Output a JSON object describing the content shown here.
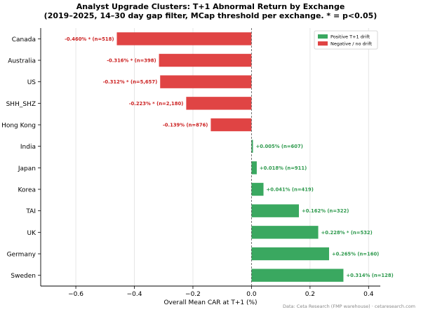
{
  "chart_data": {
    "type": "bar",
    "orientation": "horizontal",
    "title": "Analyst Upgrade Clusters: T+1 Abnormal Return by Exchange",
    "subtitle": "(2019–2025, 14–30 day gap filter, MCap threshold per exchange. * = p<0.05)",
    "xlabel": "Overall Mean CAR at T+1 (%)",
    "ylabel": "",
    "xlim": [
      -0.72,
      0.44
    ],
    "xticks": [
      -0.6,
      -0.4,
      -0.2,
      0.0,
      0.2,
      0.4
    ],
    "xtick_labels": [
      "−0.6",
      "−0.4",
      "−0.2",
      "0.0",
      "0.2",
      "0.4"
    ],
    "grid": "vertical",
    "legend_position": "top-right",
    "legend": [
      {
        "label": "Positive T+1 drift",
        "color": "#3aa860"
      },
      {
        "label": "Negative / no drift",
        "color": "#e04444"
      }
    ],
    "categories": [
      "Canada",
      "Australia",
      "US",
      "SHH_SHZ",
      "Hong Kong",
      "India",
      "Japan",
      "Korea",
      "TAI",
      "UK",
      "Germany",
      "Sweden"
    ],
    "values": [
      -0.46,
      -0.316,
      -0.312,
      -0.223,
      -0.139,
      0.005,
      0.018,
      0.041,
      0.162,
      0.228,
      0.265,
      0.314
    ],
    "labels": [
      "-0.460% *  (n=518)",
      "-0.316% *  (n=398)",
      "-0.312% *  (n=5,657)",
      "-0.223% *  (n=2,180)",
      "-0.139%  (n=876)",
      "+0.005%  (n=607)",
      "+0.018%  (n=911)",
      "+0.041%  (n=419)",
      "+0.162%  (n=322)",
      "+0.228% *  (n=532)",
      "+0.265%  (n=160)",
      "+0.314%  (n=128)"
    ],
    "colors": {
      "positive": "#3aa860",
      "negative": "#e04444",
      "positive_text": "#2f9a4e",
      "negative_text": "#cc2222"
    }
  },
  "footer": {
    "credit": "Data: Ceta Research (FMP warehouse) · cetaresearch.com"
  }
}
